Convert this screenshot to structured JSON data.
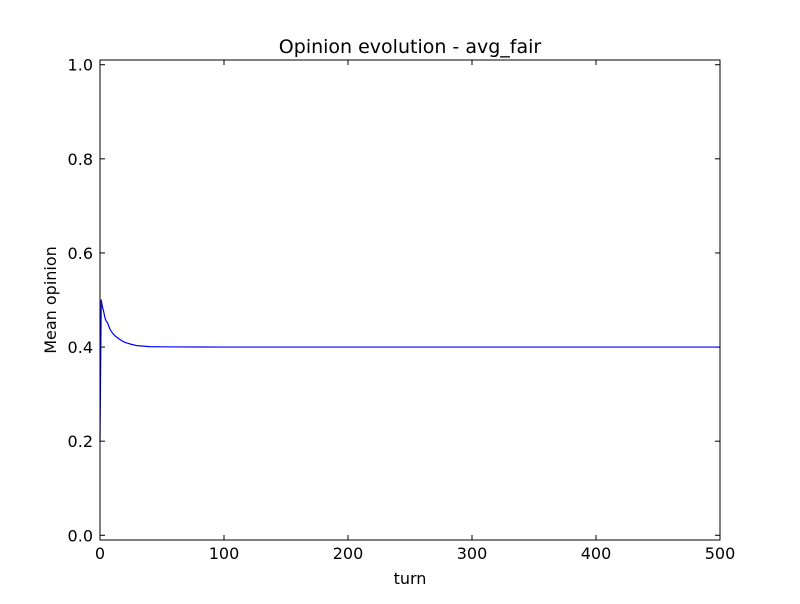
{
  "chart_data": {
    "type": "line",
    "title": "Opinion evolution - avg_fair",
    "xlabel": "turn",
    "ylabel": "Mean opinion",
    "xlim": [
      0,
      500
    ],
    "ylim": [
      -0.01,
      1.01
    ],
    "grid": false,
    "xticks": [
      0,
      100,
      200,
      300,
      400,
      500
    ],
    "xtick_labels": [
      "0",
      "100",
      "200",
      "300",
      "400",
      "500"
    ],
    "yticks": [
      0.0,
      0.2,
      0.4,
      0.6,
      0.8,
      1.0
    ],
    "ytick_labels": [
      "0.0",
      "0.2",
      "0.4",
      "0.6",
      "0.8",
      "1.0"
    ],
    "series": [
      {
        "color": "#0000ff",
        "x": [
          0,
          1,
          2,
          3,
          4,
          5,
          6,
          7,
          8,
          9,
          10,
          12,
          14,
          16,
          18,
          20,
          25,
          30,
          35,
          40,
          50,
          60,
          80,
          100,
          150,
          200,
          300,
          400,
          500
        ],
        "y": [
          0.2,
          0.5,
          0.485,
          0.475,
          0.462,
          0.455,
          0.452,
          0.445,
          0.438,
          0.434,
          0.43,
          0.424,
          0.42,
          0.416,
          0.413,
          0.41,
          0.406,
          0.403,
          0.402,
          0.401,
          0.4005,
          0.4002,
          0.4001,
          0.4,
          0.4,
          0.4,
          0.4,
          0.4,
          0.4
        ]
      }
    ]
  }
}
